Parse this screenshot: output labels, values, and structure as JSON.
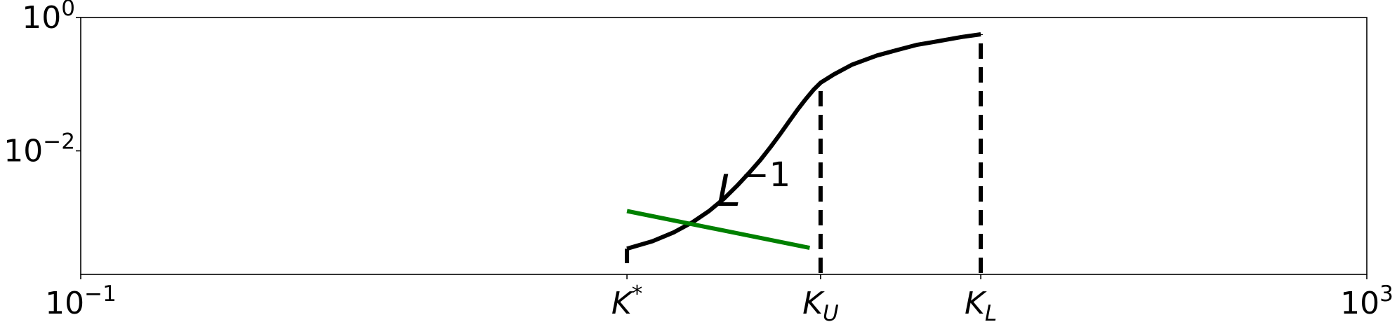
{
  "chart_data": {
    "type": "line",
    "title": "",
    "xlabel": "",
    "ylabel": "",
    "xscale": "log",
    "yscale": "log",
    "xlim": [
      0.1,
      1000
    ],
    "ylim": [
      0.00014,
      1
    ],
    "grid": false,
    "x_ticks": [
      {
        "label_base": "10",
        "label_sup": "−1",
        "label_sub": "",
        "value": 0.1
      },
      {
        "label_base": "K",
        "label_sup": "*",
        "label_sub": "",
        "value": 5
      },
      {
        "label_base": "K",
        "label_sup": "",
        "label_sub": "U",
        "value": 20
      },
      {
        "label_base": "K",
        "label_sup": "",
        "label_sub": "L",
        "value": 63
      },
      {
        "label_base": "10",
        "label_sup": "3",
        "label_sub": "",
        "value": 1000
      }
    ],
    "y_ticks": [
      {
        "label_base": "10",
        "label_sup": "0",
        "value": 1
      },
      {
        "label_base": "10",
        "label_sup": "−2",
        "value": 0.01
      }
    ],
    "series": [
      {
        "color": "#000000",
        "style": "solid",
        "x": [
          5,
          6,
          7,
          8,
          9,
          10,
          11,
          12,
          13,
          14,
          15,
          16,
          17,
          18,
          19,
          20,
          22,
          25,
          30,
          35,
          40,
          45,
          50,
          55,
          63
        ],
        "y": [
          0.00034,
          0.00044,
          0.0006,
          0.00085,
          0.00125,
          0.0019,
          0.003,
          0.0047,
          0.0073,
          0.0115,
          0.018,
          0.028,
          0.042,
          0.06,
          0.082,
          0.105,
          0.14,
          0.195,
          0.27,
          0.33,
          0.39,
          0.43,
          0.47,
          0.51,
          0.56
        ]
      },
      {
        "color": "#008000",
        "style": "solid",
        "x": [
          5,
          18.5
        ],
        "y": [
          0.00125,
          0.00035
        ]
      }
    ],
    "reference_lines": [
      {
        "x": 20,
        "y_from": 0.00014,
        "y_to": 0.105,
        "color": "#000000",
        "style": "dashed"
      },
      {
        "x": 63,
        "y_from": 0.00014,
        "y_to": 0.56,
        "color": "#000000",
        "style": "dashed"
      }
    ],
    "annotations": [
      {
        "text_base": "L",
        "text_sup": "−1",
        "x": 9.5,
        "y": 0.0015
      }
    ]
  }
}
